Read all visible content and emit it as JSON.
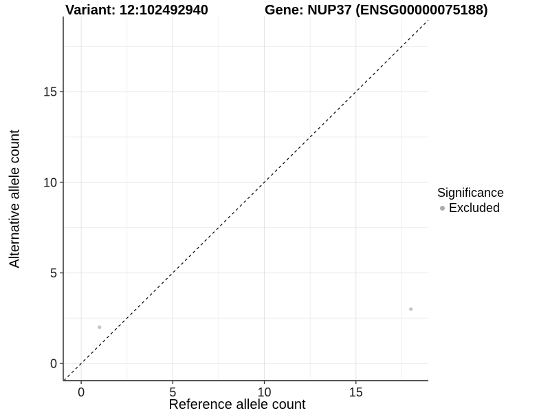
{
  "titles": {
    "variant": "Variant: 12:102492940",
    "gene": "Gene: NUP37 (ENSG00000075188)"
  },
  "chart_data": {
    "type": "scatter",
    "title": "Variant: 12:102492940   Gene: NUP37 (ENSG00000075188)",
    "xlabel": "Reference allele count",
    "ylabel": "Alternative allele count",
    "xlim": [
      -0.98,
      18.95
    ],
    "ylim": [
      -0.95,
      19.15
    ],
    "x_ticks": [
      0,
      5,
      10,
      15
    ],
    "y_ticks": [
      0,
      5,
      10,
      15
    ],
    "x_minor_ticks": [
      2.5,
      7.5,
      12.5,
      17.5
    ],
    "y_minor_ticks": [
      2.5,
      7.5,
      12.5,
      17.5
    ],
    "grid": "major+minor",
    "identity_line": {
      "equation": "y = x",
      "style": "dashed",
      "color": "#000000"
    },
    "series": [
      {
        "name": "Excluded",
        "color": "#c3c3c3",
        "points": [
          {
            "x": 1,
            "y": 2
          },
          {
            "x": 18,
            "y": 3
          }
        ]
      }
    ],
    "legend": {
      "title": "Significance",
      "position": "right",
      "items": [
        {
          "label": "Excluded",
          "color": "#ababab"
        }
      ]
    },
    "colors": {
      "axis_line": "#3c3c3c",
      "tick_label": "#1a1a1a",
      "grid_major": "#e4e4e4",
      "grid_minor": "#efefef",
      "background": "#ffffff"
    }
  }
}
